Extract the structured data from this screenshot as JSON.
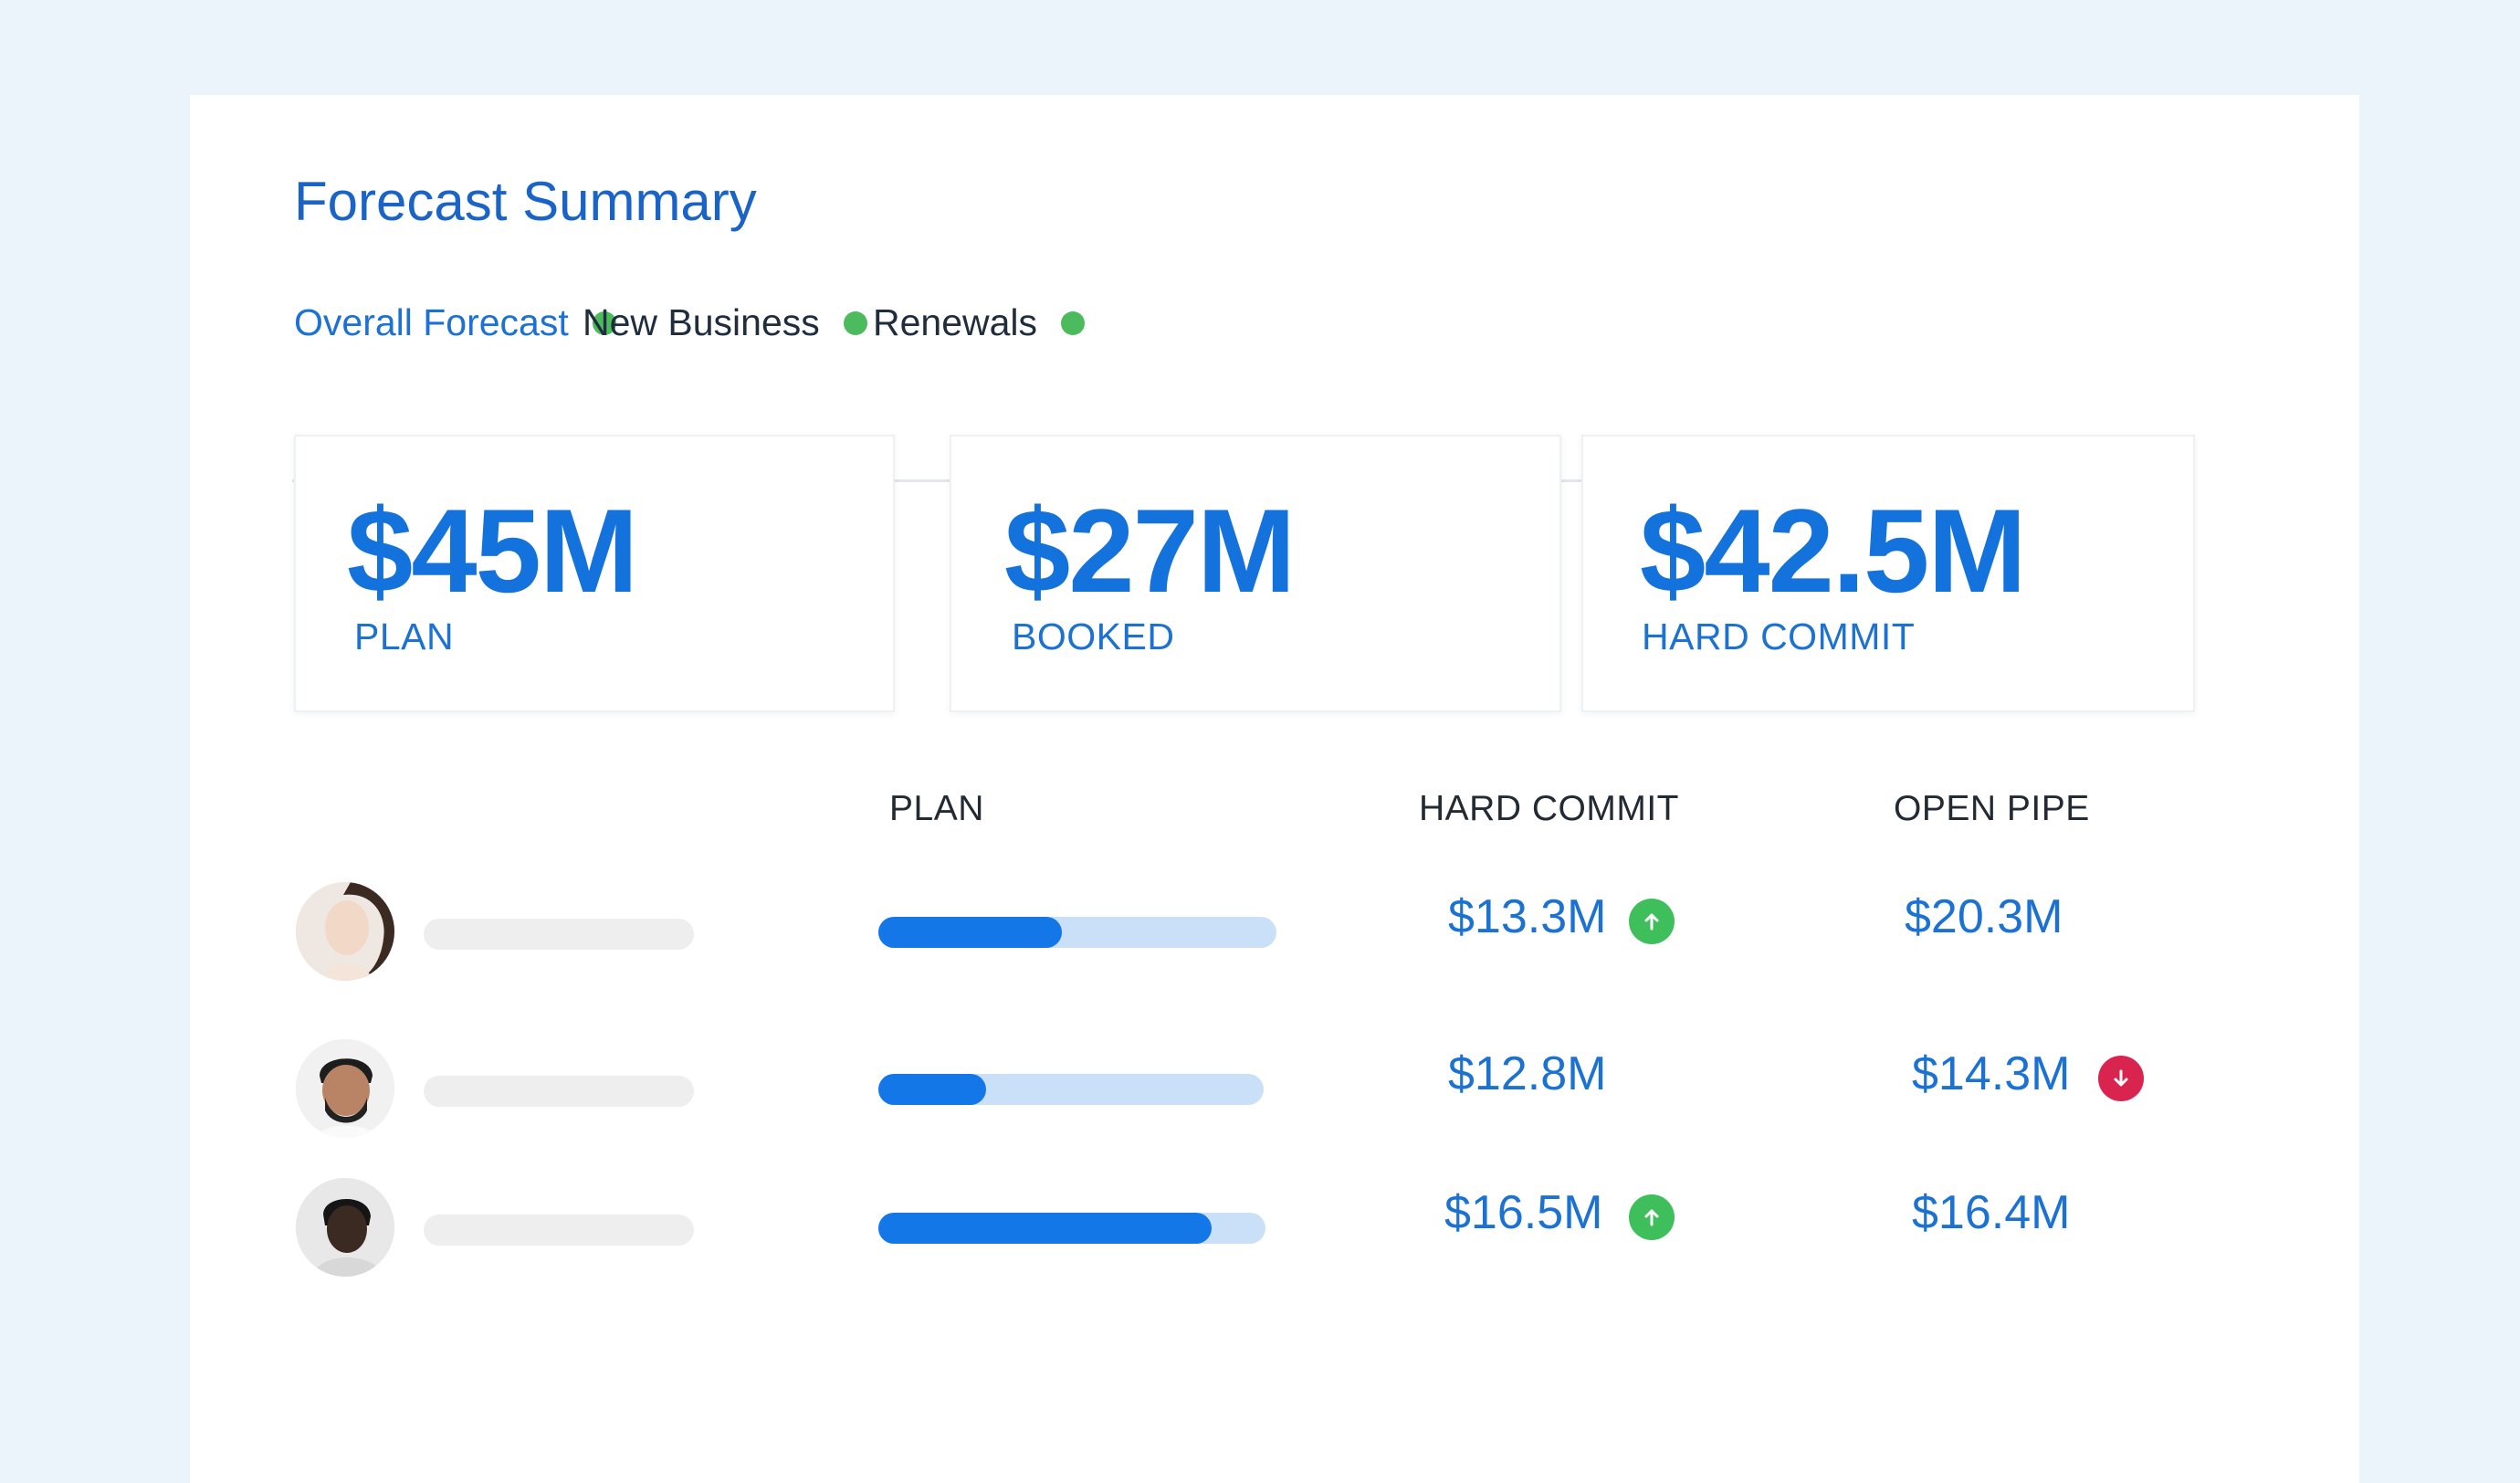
{
  "title": "Forecast Summary",
  "tabs": [
    {
      "label": "Overall Forecast",
      "active": true,
      "status_color": "#4cbb5e"
    },
    {
      "label": "New Business",
      "active": false,
      "status_color": "#4cbb5e"
    },
    {
      "label": "Renewals",
      "active": false,
      "status_color": "#4cbb5e"
    }
  ],
  "cards": [
    {
      "value": "$45M",
      "label": "PLAN"
    },
    {
      "value": "$27M",
      "label": "BOOKED"
    },
    {
      "value": "$42.5M",
      "label": "HARD COMMIT"
    }
  ],
  "table": {
    "headers": {
      "plan": "PLAN",
      "hard_commit": "HARD COMMIT",
      "open_pipe": "OPEN PIPE"
    },
    "rows": [
      {
        "plan_progress": 0.46,
        "hard_commit": "$13.3M",
        "hard_commit_trend": "up-icon",
        "open_pipe": "$20.3M",
        "open_pipe_trend": null
      },
      {
        "plan_progress": 0.28,
        "hard_commit": "$12.8M",
        "hard_commit_trend": null,
        "open_pipe": "$14.3M",
        "open_pipe_trend": "down-icon"
      },
      {
        "plan_progress": 0.86,
        "hard_commit": "$16.5M",
        "hard_commit_trend": "up-icon",
        "open_pipe": "$16.4M",
        "open_pipe_trend": null
      }
    ]
  },
  "colors": {
    "accent": "#1477e8",
    "title": "#1a63c7",
    "trend_up": "#3fbf5b",
    "trend_down": "#d8244f",
    "progress_track": "#c9e0f8"
  }
}
